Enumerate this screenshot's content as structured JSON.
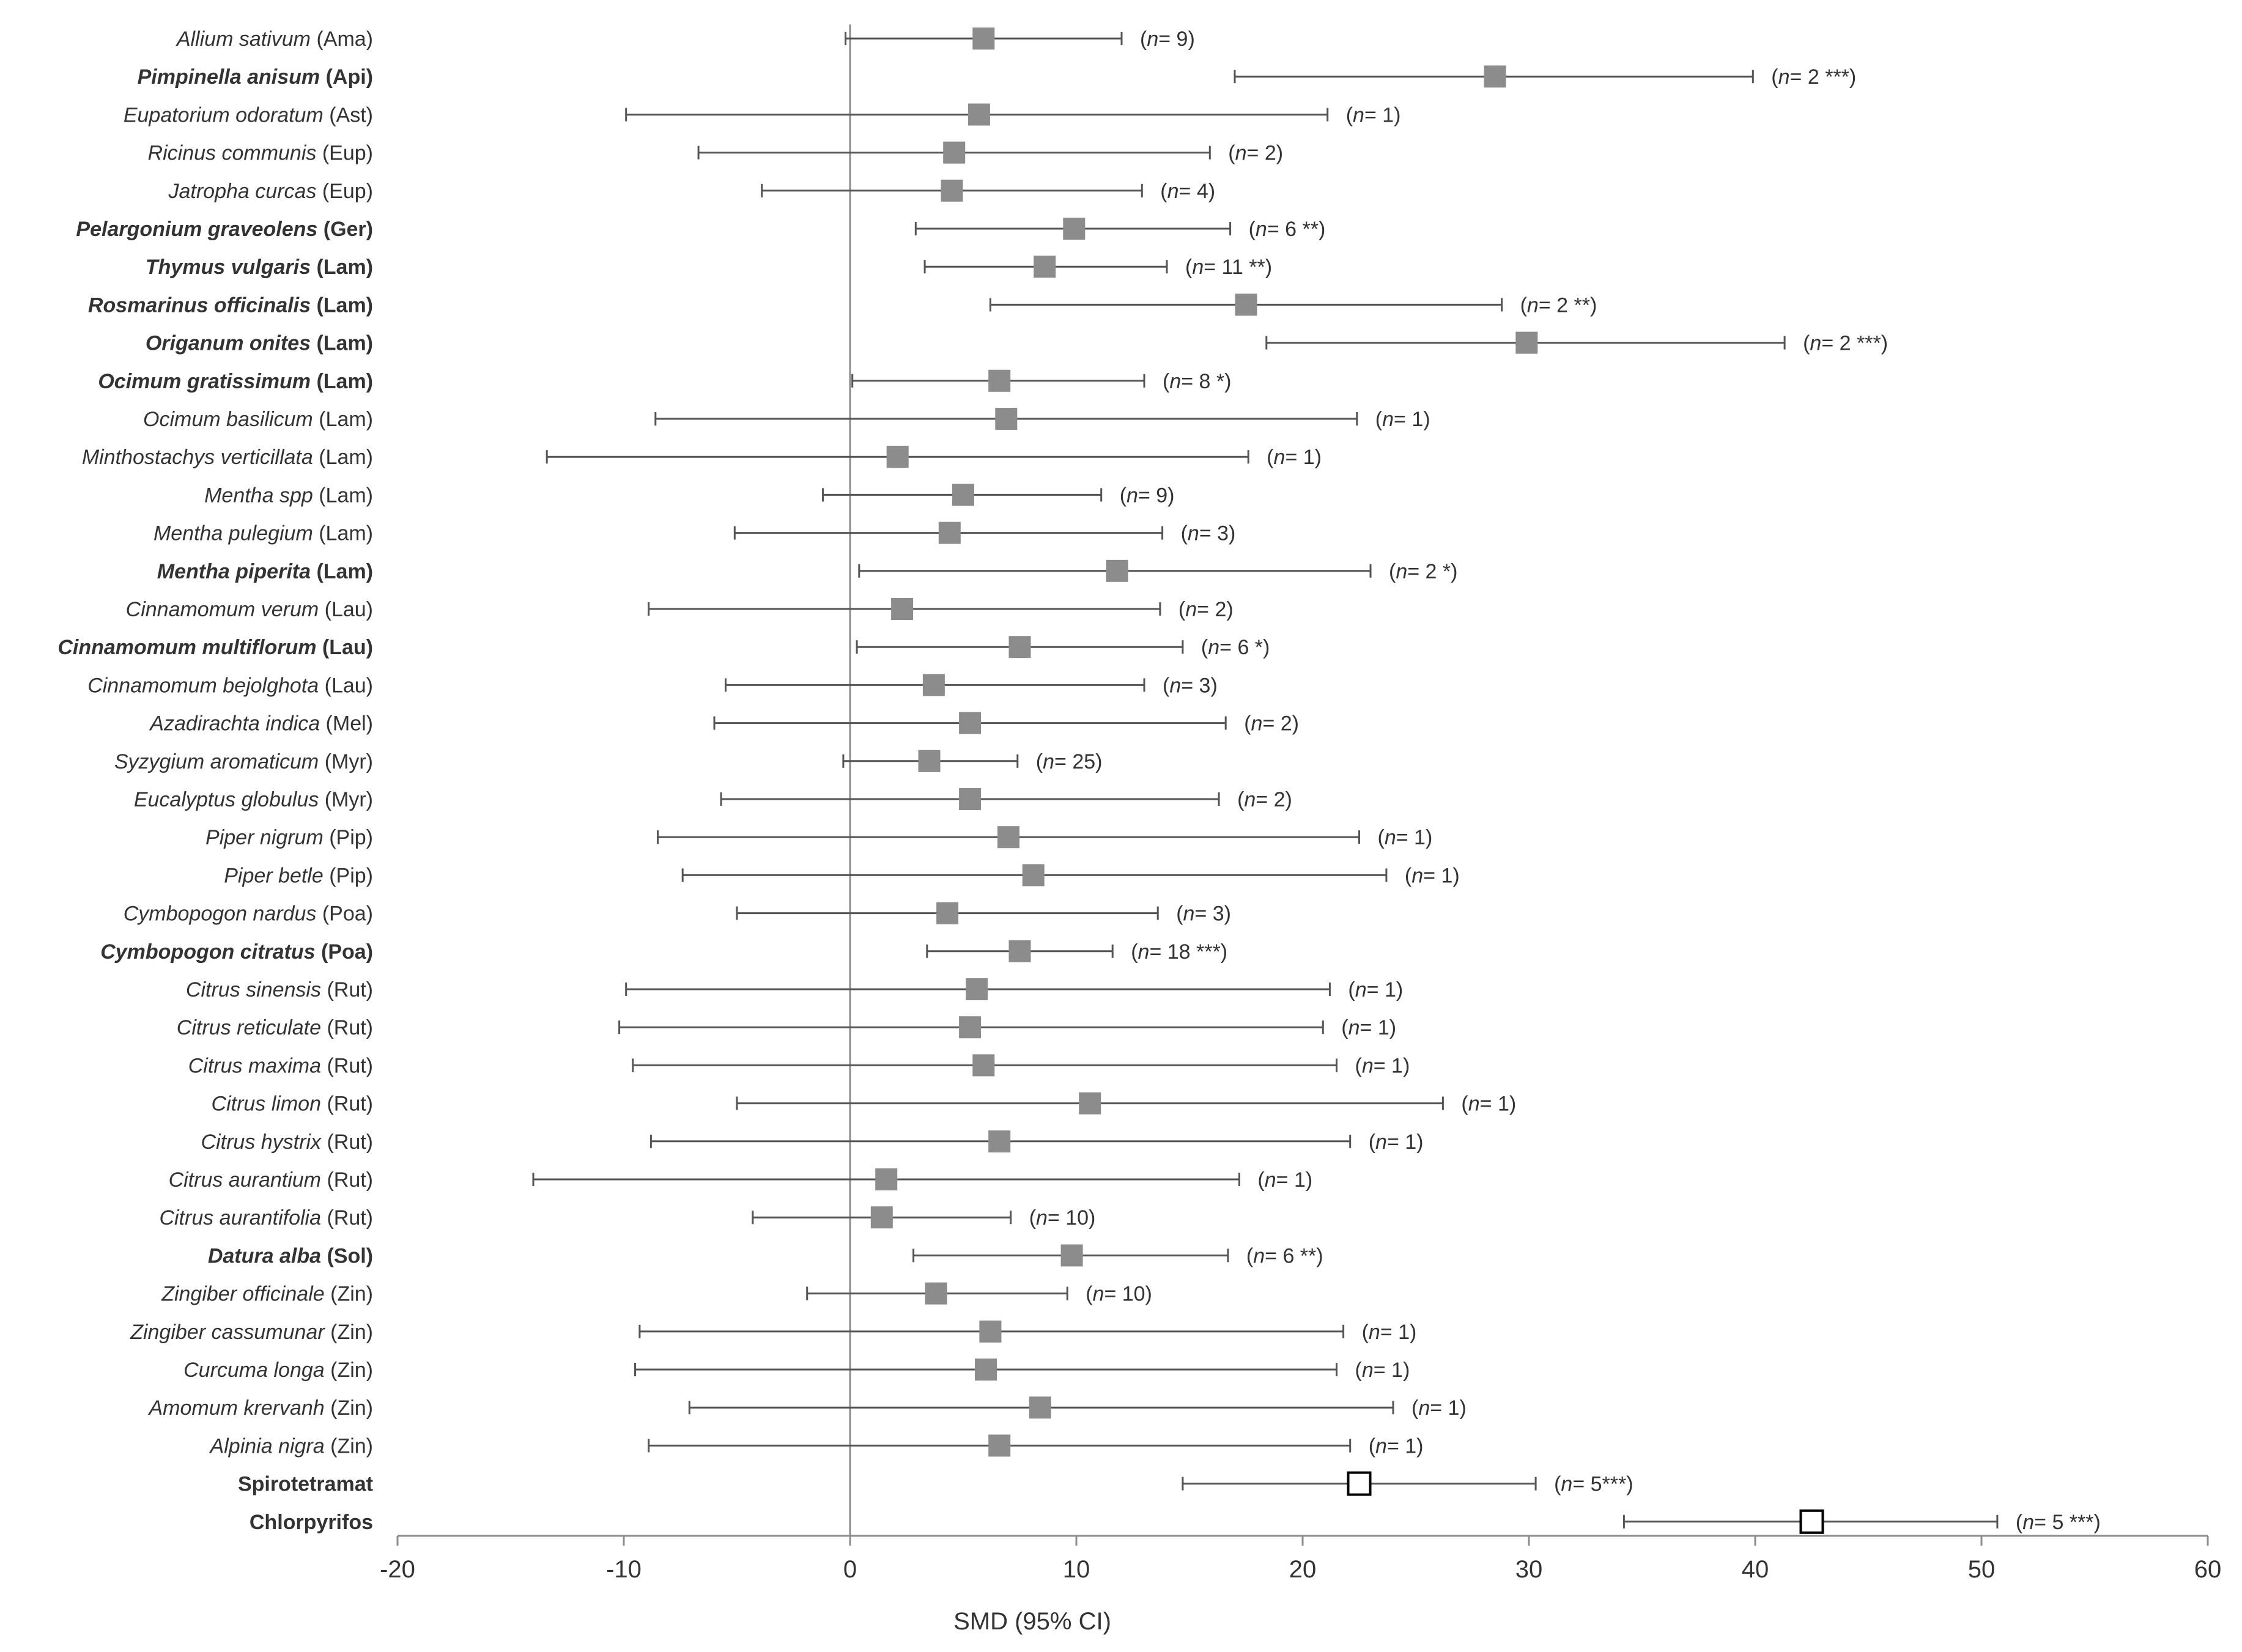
{
  "chart_data": {
    "type": "forest",
    "title": "",
    "xlabel": "SMD (95% CI)",
    "xlim": [
      -20,
      60
    ],
    "xticks": [
      "-20",
      "-10",
      "0",
      "10",
      "20",
      "30",
      "40",
      "50",
      "60"
    ],
    "xtick_values": [
      -20,
      -10,
      0,
      10,
      20,
      30,
      40,
      50,
      60
    ],
    "reference_line": 0,
    "colors": {
      "marker": "#8c8c8c",
      "control_marker_fill": "#ffffff",
      "control_marker_stroke": "#000000",
      "ci_line": "#555555",
      "axis": "#8c8c8c"
    },
    "rows": [
      {
        "species": "Allium sativum",
        "family": "(Ama)",
        "bold": false,
        "control": false,
        "smd": 5.9,
        "lo": -0.2,
        "hi": 12.0,
        "note": "n= 9",
        "stars": ""
      },
      {
        "species": "Pimpinella anisum",
        "family": "(Api)",
        "bold": true,
        "control": false,
        "smd": 28.5,
        "lo": 17.0,
        "hi": 39.9,
        "note": "n= 2 ***",
        "stars": ""
      },
      {
        "species": "Eupatorium odoratum",
        "family": "(Ast)",
        "bold": false,
        "control": false,
        "smd": 5.7,
        "lo": -9.9,
        "hi": 21.1,
        "note": "n= 1",
        "stars": ""
      },
      {
        "species": "Ricinus communis",
        "family": "(Eup)",
        "bold": false,
        "control": false,
        "smd": 4.6,
        "lo": -6.7,
        "hi": 15.9,
        "note": "n= 2",
        "stars": ""
      },
      {
        "species": "Jatropha curcas",
        "family": "(Eup)",
        "bold": false,
        "control": false,
        "smd": 4.5,
        "lo": -3.9,
        "hi": 12.9,
        "note": "n= 4",
        "stars": ""
      },
      {
        "species": "Pelargonium graveolens",
        "family": "(Ger)",
        "bold": true,
        "control": false,
        "smd": 9.9,
        "lo": 2.9,
        "hi": 16.8,
        "note": "n= 6 **",
        "stars": ""
      },
      {
        "species": "Thymus vulgaris",
        "family": "(Lam)",
        "bold": true,
        "control": false,
        "smd": 8.6,
        "lo": 3.3,
        "hi": 14.0,
        "note": "n= 11 **",
        "stars": ""
      },
      {
        "species": "Rosmarinus officinalis",
        "family": "(Lam)",
        "bold": true,
        "control": false,
        "smd": 17.5,
        "lo": 6.2,
        "hi": 28.8,
        "note": "n= 2 **",
        "stars": ""
      },
      {
        "species": "Origanum onites",
        "family": "(Lam)",
        "bold": true,
        "control": false,
        "smd": 29.9,
        "lo": 18.4,
        "hi": 41.3,
        "note": "n= 2 ***",
        "stars": ""
      },
      {
        "species": "Ocimum gratissimum",
        "family": "(Lam)",
        "bold": true,
        "control": false,
        "smd": 6.6,
        "lo": 0.1,
        "hi": 13.0,
        "note": "n= 8 *",
        "stars": ""
      },
      {
        "species": "Ocimum basilicum",
        "family": "(Lam)",
        "bold": false,
        "control": false,
        "smd": 6.9,
        "lo": -8.6,
        "hi": 22.4,
        "note": "n= 1",
        "stars": ""
      },
      {
        "species": "Minthostachys verticillata",
        "family": "(Lam)",
        "bold": false,
        "control": false,
        "smd": 2.1,
        "lo": -13.4,
        "hi": 17.6,
        "note": "n= 1",
        "stars": ""
      },
      {
        "species": "Mentha spp",
        "family": "(Lam)",
        "bold": false,
        "control": false,
        "smd": 5.0,
        "lo": -1.2,
        "hi": 11.1,
        "note": "n= 9",
        "stars": ""
      },
      {
        "species": "Mentha pulegium",
        "family": "(Lam)",
        "bold": false,
        "control": false,
        "smd": 4.4,
        "lo": -5.1,
        "hi": 13.8,
        "note": "n= 3",
        "stars": ""
      },
      {
        "species": "Mentha piperita",
        "family": "(Lam)",
        "bold": true,
        "control": false,
        "smd": 11.8,
        "lo": 0.4,
        "hi": 23.0,
        "note": "n= 2 *",
        "stars": ""
      },
      {
        "species": "Cinnamomum verum",
        "family": "(Lau)",
        "bold": false,
        "control": false,
        "smd": 2.3,
        "lo": -8.9,
        "hi": 13.7,
        "note": "n= 2",
        "stars": ""
      },
      {
        "species": "Cinnamomum multiflorum",
        "family": "(Lau)",
        "bold": true,
        "control": false,
        "smd": 7.5,
        "lo": 0.3,
        "hi": 14.7,
        "note": "n= 6 *",
        "stars": ""
      },
      {
        "species": "Cinnamomum bejolghota",
        "family": "(Lau)",
        "bold": false,
        "control": false,
        "smd": 3.7,
        "lo": -5.5,
        "hi": 13.0,
        "note": "n= 3",
        "stars": ""
      },
      {
        "species": "Azadirachta indica",
        "family": "(Mel)",
        "bold": false,
        "control": false,
        "smd": 5.3,
        "lo": -6.0,
        "hi": 16.6,
        "note": "n= 2",
        "stars": ""
      },
      {
        "species": "Syzygium aromaticum",
        "family": "(Myr)",
        "bold": false,
        "control": false,
        "smd": 3.5,
        "lo": -0.3,
        "hi": 7.4,
        "note": "n= 25",
        "stars": ""
      },
      {
        "species": "Eucalyptus globulus",
        "family": "(Myr)",
        "bold": false,
        "control": false,
        "smd": 5.3,
        "lo": -5.7,
        "hi": 16.3,
        "note": "n= 2",
        "stars": ""
      },
      {
        "species": "Piper nigrum",
        "family": "(Pip)",
        "bold": false,
        "control": false,
        "smd": 7.0,
        "lo": -8.5,
        "hi": 22.5,
        "note": "n= 1",
        "stars": ""
      },
      {
        "species": "Piper betle",
        "family": "(Pip)",
        "bold": false,
        "control": false,
        "smd": 8.1,
        "lo": -7.4,
        "hi": 23.7,
        "note": "n= 1",
        "stars": ""
      },
      {
        "species": "Cymbopogon nardus",
        "family": "(Poa)",
        "bold": false,
        "control": false,
        "smd": 4.3,
        "lo": -5.0,
        "hi": 13.6,
        "note": "n= 3",
        "stars": ""
      },
      {
        "species": "Cymbopogon citratus",
        "family": "(Poa)",
        "bold": true,
        "control": false,
        "smd": 7.5,
        "lo": 3.4,
        "hi": 11.6,
        "note": "n= 18 ***",
        "stars": ""
      },
      {
        "species": "Citrus sinensis",
        "family": "(Rut)",
        "bold": false,
        "control": false,
        "smd": 5.6,
        "lo": -9.9,
        "hi": 21.2,
        "note": "n= 1",
        "stars": ""
      },
      {
        "species": "Citrus reticulate",
        "family": "(Rut)",
        "bold": false,
        "control": false,
        "smd": 5.3,
        "lo": -10.2,
        "hi": 20.9,
        "note": "n= 1",
        "stars": ""
      },
      {
        "species": "Citrus maxima",
        "family": "(Rut)",
        "bold": false,
        "control": false,
        "smd": 5.9,
        "lo": -9.6,
        "hi": 21.5,
        "note": "n= 1",
        "stars": ""
      },
      {
        "species": "Citrus limon",
        "family": "(Rut)",
        "bold": false,
        "control": false,
        "smd": 10.6,
        "lo": -5.0,
        "hi": 26.2,
        "note": "n= 1",
        "stars": ""
      },
      {
        "species": "Citrus hystrix",
        "family": "(Rut)",
        "bold": false,
        "control": false,
        "smd": 6.6,
        "lo": -8.8,
        "hi": 22.1,
        "note": "n= 1",
        "stars": ""
      },
      {
        "species": "Citrus aurantium",
        "family": "(Rut)",
        "bold": false,
        "control": false,
        "smd": 1.6,
        "lo": -14.0,
        "hi": 17.2,
        "note": "n= 1",
        "stars": ""
      },
      {
        "species": "Citrus aurantifolia",
        "family": "(Rut)",
        "bold": false,
        "control": false,
        "smd": 1.4,
        "lo": -4.3,
        "hi": 7.1,
        "note": "n= 10",
        "stars": ""
      },
      {
        "species": "Datura alba",
        "family": "(Sol)",
        "bold": true,
        "control": false,
        "smd": 9.8,
        "lo": 2.8,
        "hi": 16.7,
        "note": "n= 6 **",
        "stars": ""
      },
      {
        "species": "Zingiber officinale",
        "family": "(Zin)",
        "bold": false,
        "control": false,
        "smd": 3.8,
        "lo": -1.9,
        "hi": 9.6,
        "note": "n= 10",
        "stars": ""
      },
      {
        "species": "Zingiber cassumunar",
        "family": "(Zin)",
        "bold": false,
        "control": false,
        "smd": 6.2,
        "lo": -9.3,
        "hi": 21.8,
        "note": "n= 1",
        "stars": ""
      },
      {
        "species": "Curcuma longa",
        "family": "(Zin)",
        "bold": false,
        "control": false,
        "smd": 6.0,
        "lo": -9.5,
        "hi": 21.5,
        "note": "n= 1",
        "stars": ""
      },
      {
        "species": "Amomum krervanh",
        "family": "(Zin)",
        "bold": false,
        "control": false,
        "smd": 8.4,
        "lo": -7.1,
        "hi": 24.0,
        "note": "n= 1",
        "stars": ""
      },
      {
        "species": "Alpinia nigra",
        "family": "(Zin)",
        "bold": false,
        "control": false,
        "smd": 6.6,
        "lo": -8.9,
        "hi": 22.1,
        "note": "n= 1",
        "stars": ""
      },
      {
        "species": "Spirotetramat",
        "family": "",
        "bold": true,
        "control": true,
        "smd": 22.5,
        "lo": 14.7,
        "hi": 30.3,
        "note": "n= 5***",
        "stars": ""
      },
      {
        "species": "Chlorpyrifos",
        "family": "",
        "bold": true,
        "control": true,
        "smd": 42.5,
        "lo": 34.2,
        "hi": 50.7,
        "note": "n= 5 ***",
        "stars": ""
      }
    ]
  }
}
